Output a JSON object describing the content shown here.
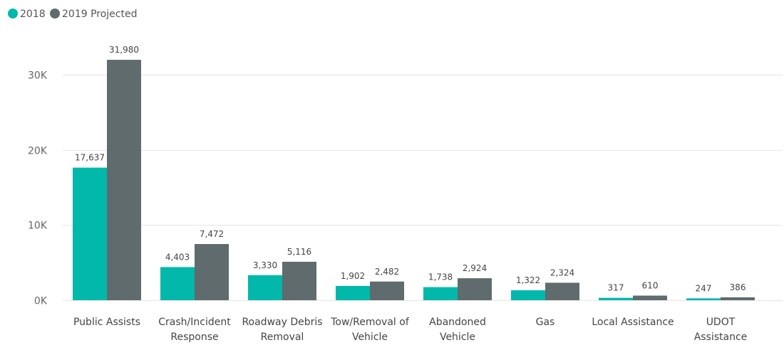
{
  "chart_data": {
    "type": "bar",
    "categories": [
      [
        "Public Assists"
      ],
      [
        "Crash/Incident",
        "Response"
      ],
      [
        "Roadway Debris",
        "Removal"
      ],
      [
        "Tow/Removal of",
        "Vehicle"
      ],
      [
        "Abandoned",
        "Vehicle"
      ],
      [
        "Gas"
      ],
      [
        "Local Assistance"
      ],
      [
        "UDOT",
        "Assistance"
      ]
    ],
    "series": [
      {
        "name": "2018",
        "color": "#01b8aa",
        "values": [
          17637,
          4403,
          3330,
          1902,
          1738,
          1322,
          317,
          247
        ],
        "labels": [
          "17,637",
          "4,403",
          "3,330",
          "1,902",
          "1,738",
          "1,322",
          "317",
          "247"
        ]
      },
      {
        "name": "2019 Projected",
        "color": "#5f6b6d",
        "values": [
          31980,
          7472,
          5116,
          2482,
          2924,
          2324,
          610,
          386
        ],
        "labels": [
          "31,980",
          "7,472",
          "5,116",
          "2,482",
          "2,924",
          "2,324",
          "610",
          "386"
        ]
      }
    ],
    "ylim": [
      0,
      35000
    ],
    "yticks": [
      0,
      10000,
      20000,
      30000
    ],
    "ytick_labels": [
      "0K",
      "10K",
      "20K",
      "30K"
    ],
    "grid": true,
    "legend": "top-left"
  }
}
